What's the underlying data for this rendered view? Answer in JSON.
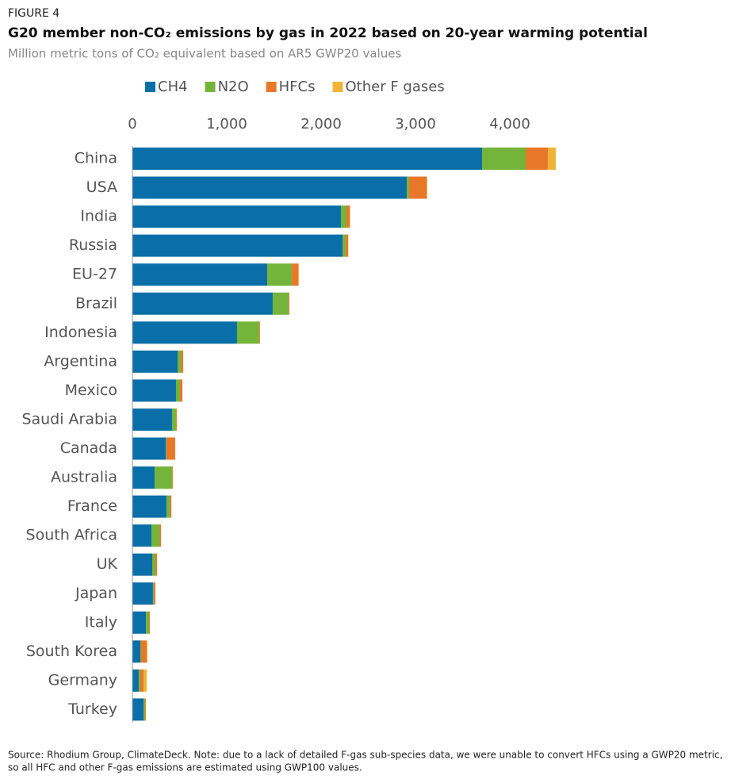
{
  "chart_data": {
    "type": "bar",
    "orientation": "horizontal",
    "stacked": true,
    "figure_label": "FIGURE 4",
    "title": "G20 member non-CO₂ emissions by gas in 2022 based on 20-year warming potential",
    "subtitle": "Million metric tons of CO₂ equivalent based on AR5 GWP20 values",
    "categories": [
      "China",
      "USA",
      "India",
      "Russia",
      "EU-27",
      "Brazil",
      "Indonesia",
      "Argentina",
      "Mexico",
      "Saudi Arabia",
      "Canada",
      "Australia",
      "France",
      "South Africa",
      "UK",
      "Japan",
      "Italy",
      "South Korea",
      "Germany",
      "Turkey"
    ],
    "series": [
      {
        "name": "CH4",
        "color": "#0a6fa8",
        "values": [
          3706,
          2908,
          2210,
          2227,
          1429,
          1487,
          1109,
          479,
          462,
          420,
          353,
          235,
          361,
          202,
          210,
          218,
          143,
          84,
          67,
          118
        ]
      },
      {
        "name": "N2O",
        "color": "#74b43a",
        "values": [
          462,
          25,
          59,
          34,
          261,
          168,
          235,
          34,
          42,
          42,
          8,
          185,
          34,
          84,
          34,
          8,
          34,
          8,
          17,
          17
        ]
      },
      {
        "name": "HFCs",
        "color": "#e8772a",
        "values": [
          235,
          185,
          34,
          25,
          67,
          8,
          8,
          25,
          25,
          8,
          92,
          8,
          17,
          17,
          17,
          17,
          8,
          59,
          34,
          8
        ]
      },
      {
        "name": "Other F gases",
        "color": "#f0b537",
        "values": [
          84,
          8,
          5,
          3,
          8,
          2,
          1,
          1,
          2,
          1,
          2,
          1,
          1,
          1,
          1,
          1,
          1,
          8,
          34,
          1
        ]
      }
    ],
    "xlim": [
      0,
      4500
    ],
    "xticks": [
      0,
      {
        "value": 1000,
        "label": "1,000"
      },
      {
        "value": 2000,
        "label": "2,000"
      },
      {
        "value": 3000,
        "label": "3,000"
      },
      {
        "value": 4000,
        "label": "4,000"
      }
    ],
    "grid": false,
    "legend": "top",
    "footnote": [
      "Source: Rhodium Group, ClimateDeck. Note: due to a lack of detailed F-gas sub-species data, we were unable to convert HFCs using a GWP20 metric,",
      "so all HFC and other F-gas emissions are estimated using GWP100 values."
    ]
  }
}
